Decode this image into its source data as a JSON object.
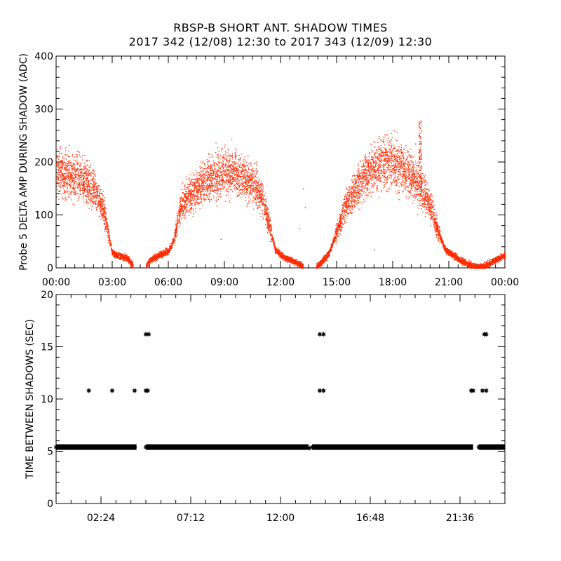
{
  "header": {
    "title": "RBSP-B SHORT ANT. SHADOW TIMES",
    "subtitle": "2017 342 (12/08) 12:30 to 2017 343 (12/09) 12:30"
  },
  "colors": {
    "amp_points": "#ff2a00",
    "time_points": "#000000",
    "axes": "#000000"
  },
  "chart_data": [
    {
      "type": "scatter",
      "name": "probe-amplitude",
      "ylabel": "Probe 5 DELTA AMP DURING SHADOW (ADC)",
      "xlabel": "",
      "xlim": [
        0,
        24
      ],
      "ylim": [
        0,
        400
      ],
      "yticks": [
        0,
        100,
        200,
        300,
        400
      ],
      "xticks": [
        0,
        3,
        6,
        9,
        12,
        15,
        18,
        21,
        24
      ],
      "xtick_labels": [
        "00:00",
        "03:00",
        "06:00",
        "09:00",
        "12:00",
        "15:00",
        "18:00",
        "21:00",
        "00:00"
      ],
      "profile_hours_amp": [
        [
          0.0,
          180
        ],
        [
          0.5,
          178
        ],
        [
          1.0,
          172
        ],
        [
          1.5,
          165
        ],
        [
          2.0,
          150
        ],
        [
          2.5,
          115
        ],
        [
          2.8,
          60
        ],
        [
          3.0,
          28
        ],
        [
          3.5,
          22
        ],
        [
          3.8,
          18
        ],
        [
          4.0,
          10
        ],
        [
          4.1,
          5
        ],
        [
          4.8,
          4
        ],
        [
          5.0,
          15
        ],
        [
          5.5,
          25
        ],
        [
          6.0,
          32
        ],
        [
          6.3,
          55
        ],
        [
          6.6,
          110
        ],
        [
          7.0,
          135
        ],
        [
          7.5,
          150
        ],
        [
          8.0,
          165
        ],
        [
          8.5,
          175
        ],
        [
          9.0,
          180
        ],
        [
          9.5,
          178
        ],
        [
          10.0,
          172
        ],
        [
          10.5,
          160
        ],
        [
          11.0,
          135
        ],
        [
          11.4,
          80
        ],
        [
          11.7,
          35
        ],
        [
          12.0,
          25
        ],
        [
          12.5,
          15
        ],
        [
          13.0,
          8
        ],
        [
          13.2,
          3
        ],
        [
          13.9,
          3
        ],
        [
          14.2,
          12
        ],
        [
          14.6,
          30
        ],
        [
          15.0,
          70
        ],
        [
          15.5,
          120
        ],
        [
          16.0,
          150
        ],
        [
          16.5,
          175
        ],
        [
          17.0,
          190
        ],
        [
          17.5,
          200
        ],
        [
          18.0,
          198
        ],
        [
          18.5,
          190
        ],
        [
          19.0,
          175
        ],
        [
          19.5,
          150
        ],
        [
          20.0,
          120
        ],
        [
          20.4,
          70
        ],
        [
          20.8,
          35
        ],
        [
          21.2,
          25
        ],
        [
          21.6,
          15
        ],
        [
          22.0,
          8
        ],
        [
          22.3,
          3
        ],
        [
          22.9,
          3
        ],
        [
          23.2,
          10
        ],
        [
          23.6,
          18
        ],
        [
          24.0,
          25
        ]
      ],
      "outliers": [
        [
          13.2,
          150
        ],
        [
          13.3,
          115
        ],
        [
          13.0,
          75
        ],
        [
          8.8,
          55
        ],
        [
          17.0,
          35
        ],
        [
          19.5,
          278
        ],
        [
          19.2,
          235
        ]
      ]
    },
    {
      "type": "scatter",
      "name": "time-between-shadows",
      "ylabel": "TIME BETWEEN SHADOWS (SEC)",
      "xlabel": "",
      "xlim": [
        0,
        24
      ],
      "ylim": [
        0,
        20
      ],
      "yticks": [
        0,
        5,
        10,
        15,
        20
      ],
      "xticks": [
        2.4,
        7.2,
        12.0,
        16.8,
        21.6
      ],
      "xtick_labels": [
        "02:24",
        "07:12",
        "12:00",
        "16:48",
        "21:36"
      ],
      "baseline_value": 5.4,
      "baseline_segments": [
        [
          0.0,
          4.3
        ],
        [
          4.8,
          13.5
        ],
        [
          13.7,
          22.3
        ],
        [
          22.6,
          24.0
        ]
      ],
      "points": [
        [
          1.75,
          10.8
        ],
        [
          3.0,
          10.8
        ],
        [
          4.2,
          10.8
        ],
        [
          4.8,
          10.8
        ],
        [
          4.9,
          10.8
        ],
        [
          4.8,
          16.2
        ],
        [
          4.95,
          16.2
        ],
        [
          14.1,
          16.2
        ],
        [
          14.3,
          16.2
        ],
        [
          14.1,
          10.8
        ],
        [
          14.3,
          10.8
        ],
        [
          22.2,
          10.8
        ],
        [
          22.3,
          10.8
        ],
        [
          22.8,
          10.8
        ],
        [
          23.0,
          10.8
        ],
        [
          22.9,
          16.2
        ],
        [
          23.0,
          16.2
        ],
        [
          13.55,
          5.3
        ]
      ]
    }
  ]
}
